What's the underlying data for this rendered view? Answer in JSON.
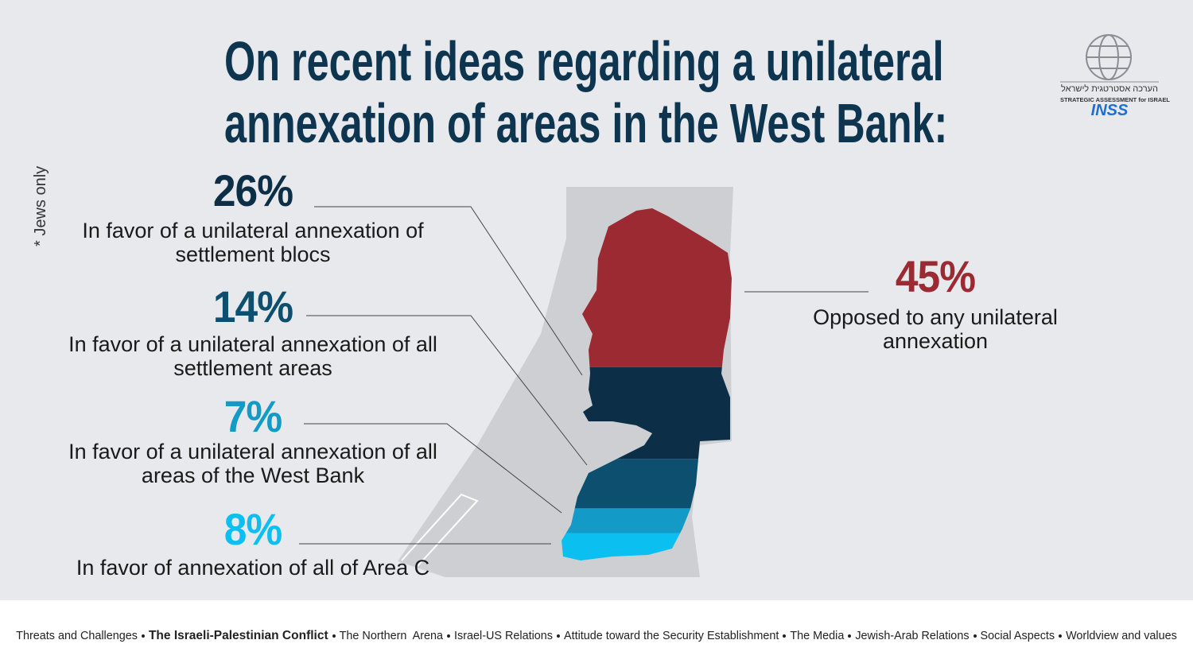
{
  "chart_data": {
    "type": "stacked-map",
    "title": [
      "On recent ideas regarding a unilateral",
      "annexation of areas in the West Bank:"
    ],
    "note": "* Jews only",
    "categories": [
      "Opposed to any unilateral annexation",
      "In favor of a unilateral annexation of settlement blocs",
      "In favor of a unilateral annexation of all settlement areas",
      "In favor of a unilateral annexation of all areas of the West Bank",
      "In favor of annexation of all of Area C"
    ],
    "values": [
      45,
      26,
      14,
      7,
      8
    ],
    "value_labels": [
      "45%",
      "26%",
      "14%",
      "7%",
      "8%"
    ],
    "colors": [
      "#9b2a33",
      "#0c2f47",
      "#0c4f6e",
      "#139ac6",
      "#0bc0f0"
    ]
  },
  "logo": {
    "hebrew": "הערכה אסטרטגית לישראל",
    "english": "STRATEGIC ASSESSMENT for ISRAEL",
    "name": "INSS"
  },
  "footer": {
    "items": [
      "Threats and Challenges",
      "The Israeli-Palestinian Conflict",
      "The Northern  Arena",
      "Israel-US Relations",
      "Attitude toward the Security Establishment",
      "The Media",
      "Jewish-Arab Relations",
      "Social Aspects",
      "Worldview and values"
    ],
    "highlight": 1
  }
}
